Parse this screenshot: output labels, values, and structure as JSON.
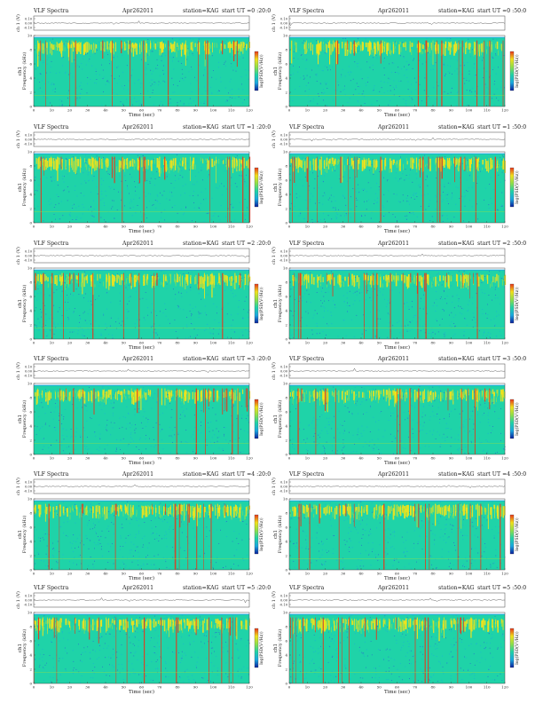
{
  "chart_data": [
    {
      "type": "heatmap",
      "title": "VLF Spectra",
      "date": "Apr262011",
      "station": "station=KAG",
      "start": "start  UT =0 :20:0",
      "ch_label": "ch 1 (V)",
      "ch_ticks": [
        "0.10",
        "0.00",
        "-0.10"
      ],
      "ylabel": "ch1\nFrequency  (kHz)",
      "xlabel": "Time  (sec)",
      "x_ticks": [
        0,
        10,
        20,
        30,
        40,
        50,
        60,
        70,
        80,
        90,
        100,
        110,
        120
      ],
      "y_ticks": [
        0,
        2,
        4,
        6,
        8,
        10
      ],
      "xlim": [
        0,
        120
      ],
      "ylim": [
        0,
        10
      ],
      "colorbar_label": "log(PSD(V²/Hz))"
    },
    {
      "type": "heatmap",
      "title": "VLF Spectra",
      "date": "Apr262011",
      "station": "station=KAG",
      "start": "start  UT =0 :50:0",
      "ch_label": "ch 1 (V)",
      "ch_ticks": [
        "0.10",
        "0.00",
        "-0.10"
      ],
      "ylabel": "ch1\nFrequency  (kHz)",
      "xlabel": "Time  (sec)",
      "x_ticks": [
        0,
        10,
        20,
        30,
        40,
        50,
        60,
        70,
        80,
        90,
        100,
        110,
        120
      ],
      "y_ticks": [
        0,
        2,
        4,
        6,
        8,
        10
      ],
      "xlim": [
        0,
        120
      ],
      "ylim": [
        0,
        10
      ],
      "colorbar_label": "log(PSD(V²/Hz))"
    },
    {
      "type": "heatmap",
      "title": "VLF Spectra",
      "date": "Apr262011",
      "station": "station=KAG",
      "start": "start  UT =1 :20:0",
      "ch_label": "ch 1 (V)",
      "ch_ticks": [
        "0.10",
        "0.00",
        "-0.10"
      ],
      "ylabel": "ch1\nFrequency  (kHz)",
      "xlabel": "Time  (sec)",
      "x_ticks": [
        0,
        10,
        20,
        30,
        40,
        50,
        60,
        70,
        80,
        90,
        100,
        110,
        120
      ],
      "y_ticks": [
        0,
        2,
        4,
        6,
        8,
        10
      ],
      "xlim": [
        0,
        120
      ],
      "ylim": [
        0,
        10
      ],
      "colorbar_label": "log(PSD(V²/Hz))"
    },
    {
      "type": "heatmap",
      "title": "VLF Spectra",
      "date": "Apr262011",
      "station": "station=KAG",
      "start": "start  UT =1 :50:0",
      "ch_label": "ch 1 (V)",
      "ch_ticks": [
        "0.10",
        "0.00",
        "-0.10"
      ],
      "ylabel": "ch1\nFrequency  (kHz)",
      "xlabel": "Time  (sec)",
      "x_ticks": [
        0,
        10,
        20,
        30,
        40,
        50,
        60,
        70,
        80,
        90,
        100,
        110,
        120
      ],
      "y_ticks": [
        0,
        2,
        4,
        6,
        8,
        10
      ],
      "xlim": [
        0,
        120
      ],
      "ylim": [
        0,
        10
      ],
      "colorbar_label": "log(PSD(V²/Hz))"
    },
    {
      "type": "heatmap",
      "title": "VLF Spectra",
      "date": "Apr262011",
      "station": "station=KAG",
      "start": "start  UT =2 :20:0",
      "ch_label": "ch 1 (V)",
      "ch_ticks": [
        "0.10",
        "0.00",
        "-0.10"
      ],
      "ylabel": "ch1\nFrequency  (kHz)",
      "xlabel": "Time  (sec)",
      "x_ticks": [
        0,
        10,
        20,
        30,
        40,
        50,
        60,
        70,
        80,
        90,
        100,
        110,
        120
      ],
      "y_ticks": [
        0,
        2,
        4,
        6,
        8,
        10
      ],
      "xlim": [
        0,
        120
      ],
      "ylim": [
        0,
        10
      ],
      "colorbar_label": "log(PSD(V²/Hz))"
    },
    {
      "type": "heatmap",
      "title": "VLF Spectra",
      "date": "Apr262011",
      "station": "station=KAG",
      "start": "start  UT =2 :50:0",
      "ch_label": "ch 1 (V)",
      "ch_ticks": [
        "0.10",
        "0.00",
        "-0.10"
      ],
      "ylabel": "ch1\nFrequency  (kHz)",
      "xlabel": "Time  (sec)",
      "x_ticks": [
        0,
        10,
        20,
        30,
        40,
        50,
        60,
        70,
        80,
        90,
        100,
        110,
        120
      ],
      "y_ticks": [
        0,
        2,
        4,
        6,
        8,
        10
      ],
      "xlim": [
        0,
        120
      ],
      "ylim": [
        0,
        10
      ],
      "colorbar_label": "log(PSD(V²/Hz))"
    },
    {
      "type": "heatmap",
      "title": "VLF Spectra",
      "date": "Apr262011",
      "station": "station=KAG",
      "start": "start  UT =3 :20:0",
      "ch_label": "ch 1 (V)",
      "ch_ticks": [
        "0.10",
        "0.00",
        "-0.10"
      ],
      "ylabel": "ch1\nFrequency  (kHz)",
      "xlabel": "Time  (sec)",
      "x_ticks": [
        0,
        10,
        20,
        30,
        40,
        50,
        60,
        70,
        80,
        90,
        100,
        110,
        120
      ],
      "y_ticks": [
        0,
        2,
        4,
        6,
        8,
        10
      ],
      "xlim": [
        0,
        120
      ],
      "ylim": [
        0,
        10
      ],
      "colorbar_label": "log(PSD(V²/Hz))"
    },
    {
      "type": "heatmap",
      "title": "VLF Spectra",
      "date": "Apr262011",
      "station": "station=KAG",
      "start": "start  UT =3 :50:0",
      "ch_label": "ch 1 (V)",
      "ch_ticks": [
        "0.10",
        "0.00",
        "-0.10"
      ],
      "ylabel": "ch1\nFrequency  (kHz)",
      "xlabel": "Time  (sec)",
      "x_ticks": [
        0,
        10,
        20,
        30,
        40,
        50,
        60,
        70,
        80,
        90,
        100,
        110,
        120
      ],
      "y_ticks": [
        0,
        2,
        4,
        6,
        8,
        10
      ],
      "xlim": [
        0,
        120
      ],
      "ylim": [
        0,
        10
      ],
      "colorbar_label": "log(PSD(V²/Hz))"
    },
    {
      "type": "heatmap",
      "title": "VLF Spectra",
      "date": "Apr262011",
      "station": "station=KAG",
      "start": "start  UT =4 :20:0",
      "ch_label": "ch 1 (V)",
      "ch_ticks": [
        "0.10",
        "0.00",
        "-0.10"
      ],
      "ylabel": "ch1\nFrequency  (kHz)",
      "xlabel": "Time  (sec)",
      "x_ticks": [
        0,
        10,
        20,
        30,
        40,
        50,
        60,
        70,
        80,
        90,
        100,
        110,
        120
      ],
      "y_ticks": [
        0,
        2,
        4,
        6,
        8,
        10
      ],
      "xlim": [
        0,
        120
      ],
      "ylim": [
        0,
        10
      ],
      "colorbar_label": "log(PSD(V²/Hz))"
    },
    {
      "type": "heatmap",
      "title": "VLF Spectra",
      "date": "Apr262011",
      "station": "station=KAG",
      "start": "start  UT =4 :50:0",
      "ch_label": "ch 1 (V)",
      "ch_ticks": [
        "0.10",
        "0.00",
        "-0.10"
      ],
      "ylabel": "ch1\nFrequency  (kHz)",
      "xlabel": "Time  (sec)",
      "x_ticks": [
        0,
        10,
        20,
        30,
        40,
        50,
        60,
        70,
        80,
        90,
        100,
        110,
        120
      ],
      "y_ticks": [
        0,
        2,
        4,
        6,
        8,
        10
      ],
      "xlim": [
        0,
        120
      ],
      "ylim": [
        0,
        10
      ],
      "colorbar_label": "log(PSD(V²/Hz))"
    },
    {
      "type": "heatmap",
      "title": "VLF Spectra",
      "date": "Apr262011",
      "station": "station=KAG",
      "start": "start  UT =5 :20:0",
      "ch_label": "ch 1 (V)",
      "ch_ticks": [
        "0.10",
        "0.00",
        "-0.10"
      ],
      "ylabel": "ch1\nFrequency  (kHz)",
      "xlabel": "Time  (sec)",
      "x_ticks": [
        0,
        10,
        20,
        30,
        40,
        50,
        60,
        70,
        80,
        90,
        100,
        110,
        120
      ],
      "y_ticks": [
        0,
        2,
        4,
        6,
        8,
        10
      ],
      "xlim": [
        0,
        120
      ],
      "ylim": [
        0,
        10
      ],
      "colorbar_label": "log(PSD(V²/Hz))"
    },
    {
      "type": "heatmap",
      "title": "VLF Spectra",
      "date": "Apr262011",
      "station": "station=KAG",
      "start": "start  UT =5 :50:0",
      "ch_label": "ch 1 (V)",
      "ch_ticks": [
        "0.10",
        "0.00",
        "-0.10"
      ],
      "ylabel": "ch1\nFrequency  (kHz)",
      "xlabel": "Time  (sec)",
      "x_ticks": [
        0,
        10,
        20,
        30,
        40,
        50,
        60,
        70,
        80,
        90,
        100,
        110,
        120
      ],
      "y_ticks": [
        0,
        2,
        4,
        6,
        8,
        10
      ],
      "xlim": [
        0,
        120
      ],
      "ylim": [
        0,
        10
      ],
      "colorbar_label": "log(PSD(V²/Hz))"
    }
  ],
  "colors": {
    "background": "#1fd3a8",
    "noise": "#1aa8e0",
    "speckle": "#2b4fd8",
    "mid": "#8fe04a",
    "high": "#f2e21b",
    "peak": "#e8351a",
    "colorbar": [
      "#0a1f9c",
      "#1aa8e0",
      "#1fd3a8",
      "#8fe04a",
      "#f2e21b",
      "#e8351a"
    ]
  }
}
